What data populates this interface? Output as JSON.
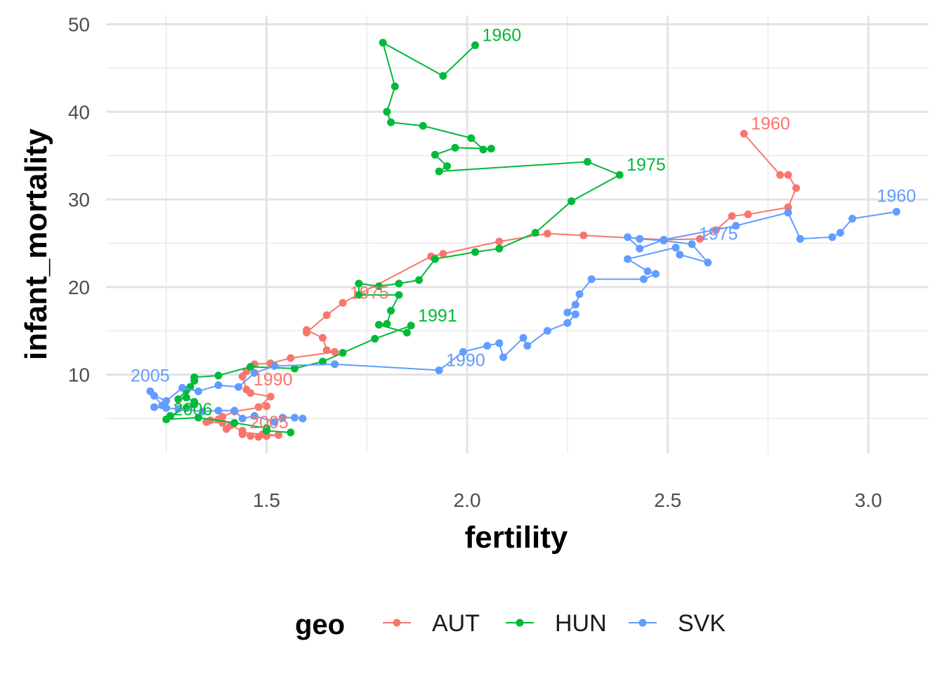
{
  "chart_data": {
    "type": "line",
    "xlabel": "fertility",
    "ylabel": "infant_mortality",
    "xlim": [
      1.1,
      3.15
    ],
    "ylim": [
      1,
      51
    ],
    "x_ticks": [
      1.5,
      2.0,
      2.5,
      3.0
    ],
    "x_tick_labels": [
      "1.5",
      "2.0",
      "2.5",
      "3.0"
    ],
    "y_ticks": [
      10,
      20,
      30,
      40,
      50
    ],
    "y_tick_labels": [
      "10",
      "20",
      "30",
      "40",
      "50"
    ],
    "grid": true,
    "legend": {
      "title": "geo",
      "position": "bottom"
    },
    "series": [
      {
        "name": "AUT",
        "color": "#F8766D",
        "points": [
          [
            2.69,
            37.5
          ],
          [
            2.78,
            32.8
          ],
          [
            2.8,
            32.8
          ],
          [
            2.82,
            31.3
          ],
          [
            2.8,
            29.1
          ],
          [
            2.7,
            28.3
          ],
          [
            2.66,
            28.1
          ],
          [
            2.62,
            26.5
          ],
          [
            2.58,
            25.5
          ],
          [
            2.49,
            25.4
          ],
          [
            2.29,
            25.9
          ],
          [
            2.2,
            26.1
          ],
          [
            2.08,
            25.2
          ],
          [
            1.94,
            23.8
          ],
          [
            1.91,
            23.5
          ],
          [
            1.69,
            18.2
          ],
          [
            1.65,
            16.8
          ],
          [
            1.6,
            14.8
          ],
          [
            1.6,
            15.1
          ],
          [
            1.64,
            14.2
          ],
          [
            1.65,
            12.8
          ],
          [
            1.67,
            12.6
          ],
          [
            1.56,
            11.9
          ],
          [
            1.51,
            11.3
          ],
          [
            1.47,
            11.2
          ],
          [
            1.45,
            10.4
          ],
          [
            1.44,
            9.8
          ],
          [
            1.45,
            8.3
          ],
          [
            1.46,
            7.9
          ],
          [
            1.51,
            7.5
          ],
          [
            1.48,
            6.3
          ],
          [
            1.5,
            6.4
          ],
          [
            1.42,
            5.8
          ],
          [
            1.39,
            5.2
          ],
          [
            1.36,
            4.8
          ],
          [
            1.38,
            4.9
          ],
          [
            1.35,
            4.6
          ],
          [
            1.39,
            4.5
          ],
          [
            1.4,
            3.8
          ],
          [
            1.41,
            4.2
          ],
          [
            1.44,
            3.6
          ],
          [
            1.44,
            3.2
          ],
          [
            1.46,
            3.0
          ],
          [
            1.48,
            2.9
          ],
          [
            1.5,
            3.0
          ],
          [
            1.53,
            3.1
          ],
          [
            1.49,
            3.2
          ],
          [
            1.44,
            3.4
          ]
        ],
        "labels": [
          {
            "text": "1960",
            "x": 2.69,
            "y": 37.5,
            "anchor": "start"
          },
          {
            "text": "1975",
            "x": 1.69,
            "y": 18.2,
            "anchor": "start"
          },
          {
            "text": "1990",
            "x": 1.45,
            "y": 8.3,
            "anchor": "start"
          },
          {
            "text": "2005",
            "x": 1.44,
            "y": 3.4,
            "anchor": "start"
          }
        ]
      },
      {
        "name": "HUN",
        "color": "#00BA38",
        "points": [
          [
            2.02,
            47.6
          ],
          [
            1.94,
            44.1
          ],
          [
            1.79,
            47.9
          ],
          [
            1.82,
            42.9
          ],
          [
            1.8,
            40.0
          ],
          [
            1.81,
            38.8
          ],
          [
            1.89,
            38.4
          ],
          [
            2.01,
            37.0
          ],
          [
            2.04,
            35.7
          ],
          [
            2.06,
            35.8
          ],
          [
            1.97,
            35.9
          ],
          [
            1.92,
            35.1
          ],
          [
            1.95,
            33.8
          ],
          [
            1.93,
            33.2
          ],
          [
            2.3,
            34.3
          ],
          [
            2.38,
            32.8
          ],
          [
            2.26,
            29.8
          ],
          [
            2.17,
            26.2
          ],
          [
            2.08,
            24.4
          ],
          [
            2.02,
            24.0
          ],
          [
            1.92,
            23.2
          ],
          [
            1.88,
            20.8
          ],
          [
            1.83,
            20.4
          ],
          [
            1.78,
            20.1
          ],
          [
            1.73,
            20.4
          ],
          [
            1.73,
            19.1
          ],
          [
            1.83,
            19.1
          ],
          [
            1.81,
            17.3
          ],
          [
            1.8,
            15.8
          ],
          [
            1.78,
            15.7
          ],
          [
            1.85,
            14.8
          ],
          [
            1.86,
            15.6
          ],
          [
            1.77,
            14.1
          ],
          [
            1.69,
            12.5
          ],
          [
            1.64,
            11.5
          ],
          [
            1.57,
            10.7
          ],
          [
            1.46,
            10.9
          ],
          [
            1.38,
            9.9
          ],
          [
            1.32,
            9.7
          ],
          [
            1.32,
            9.3
          ],
          [
            1.31,
            8.6
          ],
          [
            1.3,
            8.2
          ],
          [
            1.28,
            7.2
          ],
          [
            1.3,
            7.4
          ],
          [
            1.32,
            6.9
          ],
          [
            1.32,
            6.6
          ],
          [
            1.3,
            6.2
          ],
          [
            1.26,
            5.3
          ],
          [
            1.25,
            4.9
          ],
          [
            1.33,
            5.1
          ],
          [
            1.42,
            4.5
          ],
          [
            1.5,
            3.9
          ],
          [
            1.5,
            3.6
          ],
          [
            1.56,
            3.4
          ]
        ],
        "labels": [
          {
            "text": "1960",
            "x": 2.02,
            "y": 47.6,
            "anchor": "start"
          },
          {
            "text": "1975",
            "x": 2.38,
            "y": 32.8,
            "anchor": "start"
          },
          {
            "text": "1991",
            "x": 1.86,
            "y": 15.6,
            "anchor": "start"
          },
          {
            "text": "2006",
            "x": 1.25,
            "y": 4.9,
            "anchor": "start"
          }
        ]
      },
      {
        "name": "SVK",
        "color": "#619CFF",
        "points": [
          [
            3.07,
            28.6
          ],
          [
            2.96,
            27.8
          ],
          [
            2.93,
            26.2
          ],
          [
            2.91,
            25.7
          ],
          [
            2.83,
            25.5
          ],
          [
            2.8,
            28.5
          ],
          [
            2.67,
            27.0
          ],
          [
            2.49,
            25.4
          ],
          [
            2.43,
            24.4
          ],
          [
            2.4,
            25.7
          ],
          [
            2.43,
            25.5
          ],
          [
            2.49,
            25.3
          ],
          [
            2.56,
            24.9
          ],
          [
            2.6,
            22.8
          ],
          [
            2.53,
            23.7
          ],
          [
            2.52,
            24.5
          ],
          [
            2.4,
            23.2
          ],
          [
            2.45,
            21.8
          ],
          [
            2.47,
            21.5
          ],
          [
            2.44,
            20.9
          ],
          [
            2.31,
            20.9
          ],
          [
            2.28,
            19.2
          ],
          [
            2.27,
            18.0
          ],
          [
            2.25,
            17.1
          ],
          [
            2.27,
            16.9
          ],
          [
            2.25,
            15.9
          ],
          [
            2.2,
            15.0
          ],
          [
            2.15,
            13.3
          ],
          [
            2.14,
            14.2
          ],
          [
            2.09,
            12.0
          ],
          [
            2.08,
            13.6
          ],
          [
            2.05,
            13.3
          ],
          [
            1.99,
            12.6
          ],
          [
            1.93,
            10.5
          ],
          [
            1.67,
            11.2
          ],
          [
            1.52,
            11.0
          ],
          [
            1.47,
            10.2
          ],
          [
            1.43,
            8.6
          ],
          [
            1.38,
            8.8
          ],
          [
            1.33,
            8.1
          ],
          [
            1.29,
            8.5
          ],
          [
            1.25,
            7.0
          ],
          [
            1.22,
            7.6
          ],
          [
            1.21,
            8.1
          ],
          [
            1.24,
            6.5
          ],
          [
            1.25,
            6.2
          ],
          [
            1.22,
            6.3
          ],
          [
            1.28,
            6.1
          ],
          [
            1.34,
            5.8
          ],
          [
            1.38,
            5.9
          ],
          [
            1.42,
            5.9
          ],
          [
            1.44,
            5.0
          ],
          [
            1.47,
            5.3
          ],
          [
            1.52,
            4.6
          ],
          [
            1.54,
            5.1
          ],
          [
            1.57,
            5.1
          ],
          [
            1.59,
            5.0
          ]
        ],
        "labels": [
          {
            "text": "1960",
            "x": 3.07,
            "y": 28.6,
            "anchor": "middle"
          },
          {
            "text": "1975",
            "x": 2.56,
            "y": 24.9,
            "anchor": "start"
          },
          {
            "text": "1990",
            "x": 1.93,
            "y": 10.5,
            "anchor": "start"
          },
          {
            "text": "2005",
            "x": 1.21,
            "y": 8.1,
            "anchor": "middle"
          }
        ]
      }
    ]
  }
}
